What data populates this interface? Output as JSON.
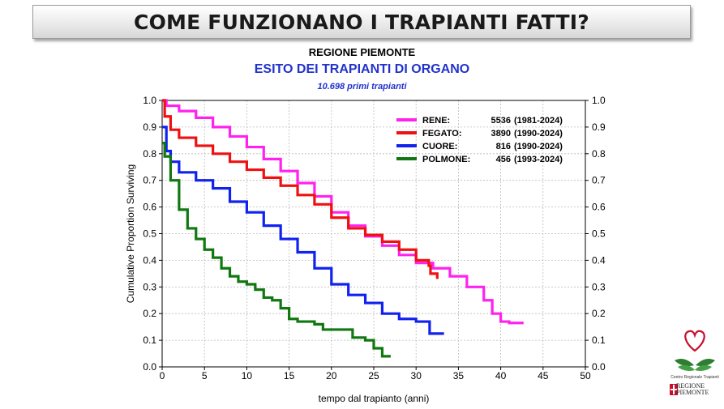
{
  "header": {
    "banner_title": "COME FUNZIONANO I TRAPIANTI FATTI?",
    "region": "REGIONE PIEMONTE",
    "subtitle": "ESITO DEI TRAPIANTI DI ORGANO",
    "note": "10.698 primi trapianti"
  },
  "logo": {
    "caption": "Centro Regionale Trapianti",
    "region_line1": "REGIONE",
    "region_line2": "PIEMONTE",
    "icon": "heart-hands-icon"
  },
  "chart_data": {
    "type": "line",
    "title": "ESITO DEI TRAPIANTI DI ORGANO",
    "xlabel": "tempo dal trapianto (anni)",
    "ylabel": "Cumulative Proportion Surviving",
    "xlim": [
      0,
      50
    ],
    "ylim": [
      0,
      1
    ],
    "x_ticks": [
      "0",
      "5",
      "10",
      "15",
      "20",
      "25",
      "30",
      "35",
      "40",
      "45",
      "50"
    ],
    "y_ticks": [
      "0.0",
      "0.1",
      "0.2",
      "0.3",
      "0.4",
      "0.5",
      "0.6",
      "0.7",
      "0.8",
      "0.9",
      "1.0"
    ],
    "grid": true,
    "legend_position": "top-right",
    "series": [
      {
        "name": "RENE:",
        "legend_count": "5536",
        "legend_years": "(1981-2024)",
        "color": "#ff22ee",
        "points": [
          [
            0,
            1.0
          ],
          [
            0.5,
            0.98
          ],
          [
            2,
            0.96
          ],
          [
            4,
            0.935
          ],
          [
            6,
            0.9
          ],
          [
            8,
            0.865
          ],
          [
            10,
            0.825
          ],
          [
            12,
            0.78
          ],
          [
            14,
            0.735
          ],
          [
            16,
            0.69
          ],
          [
            18,
            0.64
          ],
          [
            20,
            0.58
          ],
          [
            22,
            0.53
          ],
          [
            24,
            0.49
          ],
          [
            26,
            0.455
          ],
          [
            28,
            0.42
          ],
          [
            30,
            0.39
          ],
          [
            32,
            0.37
          ],
          [
            34,
            0.34
          ],
          [
            36,
            0.3
          ],
          [
            38,
            0.25
          ],
          [
            39,
            0.2
          ],
          [
            40,
            0.17
          ],
          [
            41,
            0.165
          ],
          [
            42.7,
            0.165
          ]
        ]
      },
      {
        "name": "FEGATO:",
        "legend_count": "3890",
        "legend_years": "(1990-2024)",
        "color": "#ee1111",
        "points": [
          [
            0,
            1.0
          ],
          [
            0.3,
            0.94
          ],
          [
            1,
            0.89
          ],
          [
            2,
            0.86
          ],
          [
            4,
            0.83
          ],
          [
            6,
            0.8
          ],
          [
            8,
            0.77
          ],
          [
            10,
            0.74
          ],
          [
            12,
            0.71
          ],
          [
            14,
            0.68
          ],
          [
            16,
            0.645
          ],
          [
            18,
            0.61
          ],
          [
            20,
            0.56
          ],
          [
            22,
            0.52
          ],
          [
            24,
            0.495
          ],
          [
            26,
            0.47
          ],
          [
            28,
            0.44
          ],
          [
            30,
            0.4
          ],
          [
            31.5,
            0.38
          ],
          [
            31.7,
            0.35
          ],
          [
            32.5,
            0.33
          ]
        ]
      },
      {
        "name": "CUORE:",
        "legend_count": "816",
        "legend_years": "(1990-2024)",
        "color": "#1122ee",
        "points": [
          [
            0,
            0.9
          ],
          [
            0.5,
            0.81
          ],
          [
            1,
            0.77
          ],
          [
            2,
            0.73
          ],
          [
            4,
            0.7
          ],
          [
            6,
            0.67
          ],
          [
            8,
            0.62
          ],
          [
            10,
            0.58
          ],
          [
            12,
            0.53
          ],
          [
            14,
            0.48
          ],
          [
            16,
            0.43
          ],
          [
            18,
            0.37
          ],
          [
            20,
            0.31
          ],
          [
            22,
            0.27
          ],
          [
            24,
            0.24
          ],
          [
            26,
            0.2
          ],
          [
            28,
            0.18
          ],
          [
            30,
            0.17
          ],
          [
            31.5,
            0.17
          ],
          [
            31.6,
            0.125
          ],
          [
            33.3,
            0.125
          ]
        ]
      },
      {
        "name": "POLMONE:",
        "legend_count": "456",
        "legend_years": "(1993-2024)",
        "color": "#117711",
        "points": [
          [
            0,
            0.84
          ],
          [
            0.3,
            0.79
          ],
          [
            1,
            0.7
          ],
          [
            2,
            0.59
          ],
          [
            3,
            0.52
          ],
          [
            4,
            0.48
          ],
          [
            5,
            0.44
          ],
          [
            6,
            0.41
          ],
          [
            7,
            0.37
          ],
          [
            8,
            0.34
          ],
          [
            9,
            0.32
          ],
          [
            10,
            0.31
          ],
          [
            11,
            0.29
          ],
          [
            12,
            0.26
          ],
          [
            13,
            0.25
          ],
          [
            14,
            0.22
          ],
          [
            15,
            0.18
          ],
          [
            16,
            0.17
          ],
          [
            18,
            0.16
          ],
          [
            19,
            0.14
          ],
          [
            22,
            0.14
          ],
          [
            22.5,
            0.11
          ],
          [
            24,
            0.1
          ],
          [
            25,
            0.07
          ],
          [
            26,
            0.04
          ],
          [
            27,
            0.04
          ]
        ]
      }
    ]
  }
}
